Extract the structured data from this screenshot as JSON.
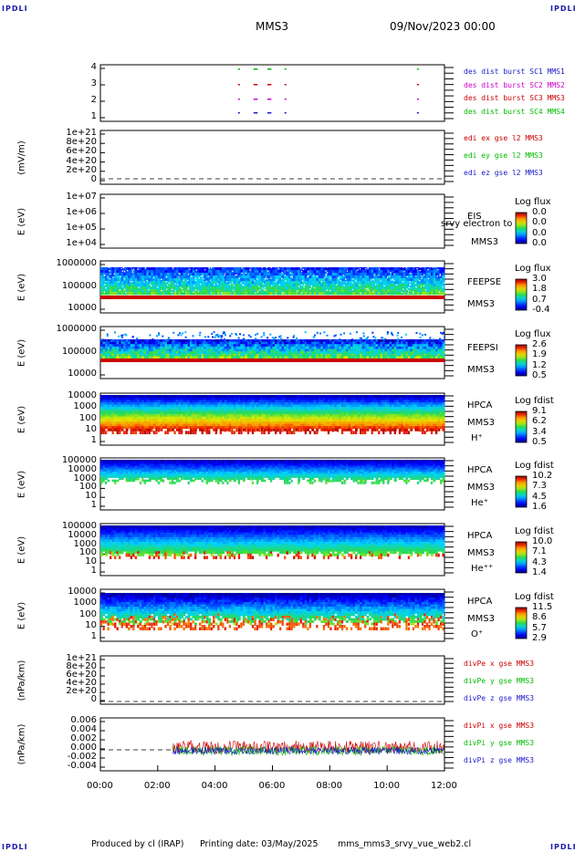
{
  "corner_labels": [
    "IPDLI",
    "IPDLI",
    "IPDLI",
    "IPDLI"
  ],
  "header": {
    "mission": "MMS3",
    "datetime": "09/Nov/2023 00:00"
  },
  "footer": {
    "produced_by": "Produced by cl (IRAP)",
    "print_date": "Printing date: 03/May/2025",
    "script": "mms_mms3_srvy_vue_web2.cl"
  },
  "colors": {
    "sc1": "#1a1acc",
    "sc2": "#cc00cc",
    "sc3": "#cc0000",
    "sc4": "#00bb00"
  },
  "chart_data": {
    "type": "heatmap",
    "x_axis": {
      "ticks": [
        "00:00",
        "02:00",
        "04:00",
        "06:00",
        "08:00",
        "10:00",
        "12:00"
      ],
      "range": [
        "00:00",
        "12:00"
      ]
    },
    "panels": [
      {
        "id": "burst",
        "ylabel": "",
        "yticks": [
          "4",
          "3",
          "2",
          "1"
        ],
        "legend": [
          {
            "text": "des dist burst SC1 MMS1",
            "color": "#1a1acc"
          },
          {
            "text": "des dist burst SC2 MMS2",
            "color": "#cc00cc"
          },
          {
            "text": "des dist burst SC3 MMS3",
            "color": "#cc0000"
          },
          {
            "text": "des dist burst SC4 MMS4",
            "color": "#00bb00"
          }
        ]
      },
      {
        "id": "edi",
        "ylabel": "(mV/m)",
        "yticks": [
          "1e+21",
          "8e+20",
          "6e+20",
          "4e+20",
          "2e+20",
          "0"
        ],
        "legend": [
          {
            "text": "edi ex gse l2 MMS3",
            "color": "#cc0000"
          },
          {
            "text": "edi ey gse l2 MMS3",
            "color": "#00bb00"
          },
          {
            "text": "edi ez gse l2 MMS3",
            "color": "#1a1acc"
          }
        ]
      },
      {
        "id": "eis",
        "ylabel": "E (eV)",
        "yticks": [
          "1e+07",
          "1e+06",
          "1e+05",
          "1e+04"
        ],
        "side_labels": [
          "EIS",
          "srvy electron to",
          "MMS3"
        ],
        "cb_title": "Log flux",
        "cb_ticks": [
          "0.0",
          "0.0",
          "0.0",
          "0.0"
        ]
      },
      {
        "id": "feepse",
        "ylabel": "E (eV)",
        "yticks": [
          "1000000",
          "100000",
          "10000"
        ],
        "side_labels": [
          "FEEPSE",
          "MMS3"
        ],
        "cb_title": "Log flux",
        "cb_ticks": [
          "3.0",
          "1.8",
          "0.7",
          "-0.4"
        ]
      },
      {
        "id": "feepsi",
        "ylabel": "E (eV)",
        "yticks": [
          "1000000",
          "100000",
          "10000"
        ],
        "side_labels": [
          "FEEPSI",
          "MMS3"
        ],
        "cb_title": "Log flux",
        "cb_ticks": [
          "2.6",
          "1.9",
          "1.2",
          "0.5"
        ]
      },
      {
        "id": "hpca_h",
        "ylabel": "E (eV)",
        "yticks": [
          "10000",
          "1000",
          "100",
          "10",
          "1"
        ],
        "side_labels": [
          "HPCA",
          "MMS3",
          "H⁺"
        ],
        "cb_title": "Log fdist",
        "cb_ticks": [
          "9.1",
          "6.2",
          "3.4",
          "0.5"
        ]
      },
      {
        "id": "hpca_he",
        "ylabel": "E (eV)",
        "yticks": [
          "100000",
          "10000",
          "1000",
          "100",
          "10",
          "1"
        ],
        "side_labels": [
          "HPCA",
          "MMS3",
          "He⁺"
        ],
        "cb_title": "Log fdist",
        "cb_ticks": [
          "10.2",
          "7.3",
          "4.5",
          "1.6"
        ]
      },
      {
        "id": "hpca_hepp",
        "ylabel": "E (eV)",
        "yticks": [
          "100000",
          "10000",
          "1000",
          "100",
          "10",
          "1"
        ],
        "side_labels": [
          "HPCA",
          "MMS3",
          "He⁺⁺"
        ],
        "cb_title": "Log fdist",
        "cb_ticks": [
          "10.0",
          "7.1",
          "4.3",
          "1.4"
        ]
      },
      {
        "id": "hpca_o",
        "ylabel": "E (eV)",
        "yticks": [
          "10000",
          "1000",
          "100",
          "10",
          "1"
        ],
        "side_labels": [
          "HPCA",
          "MMS3",
          "O⁺"
        ],
        "cb_title": "Log fdist",
        "cb_ticks": [
          "11.5",
          "8.6",
          "5.7",
          "2.9"
        ]
      },
      {
        "id": "divpe",
        "ylabel": "(nPa/km)",
        "yticks": [
          "1e+21",
          "8e+20",
          "6e+20",
          "4e+20",
          "2e+20",
          "0"
        ],
        "legend": [
          {
            "text": "divPe x gse MMS3",
            "color": "#cc0000"
          },
          {
            "text": "divPe y gse MMS3",
            "color": "#00bb00"
          },
          {
            "text": "divPe z gse MMS3",
            "color": "#1a1acc"
          }
        ]
      },
      {
        "id": "divpi",
        "ylabel": "(nPa/km)",
        "yticks": [
          "0.006",
          "0.004",
          "0.002",
          "0.000",
          "-0.002",
          "-0.004"
        ],
        "legend": [
          {
            "text": "divPi x gse MMS3",
            "color": "#cc0000"
          },
          {
            "text": "divPi y gse MMS3",
            "color": "#00bb00"
          },
          {
            "text": "divPi z gse MMS3",
            "color": "#1a1acc"
          }
        ]
      }
    ]
  }
}
